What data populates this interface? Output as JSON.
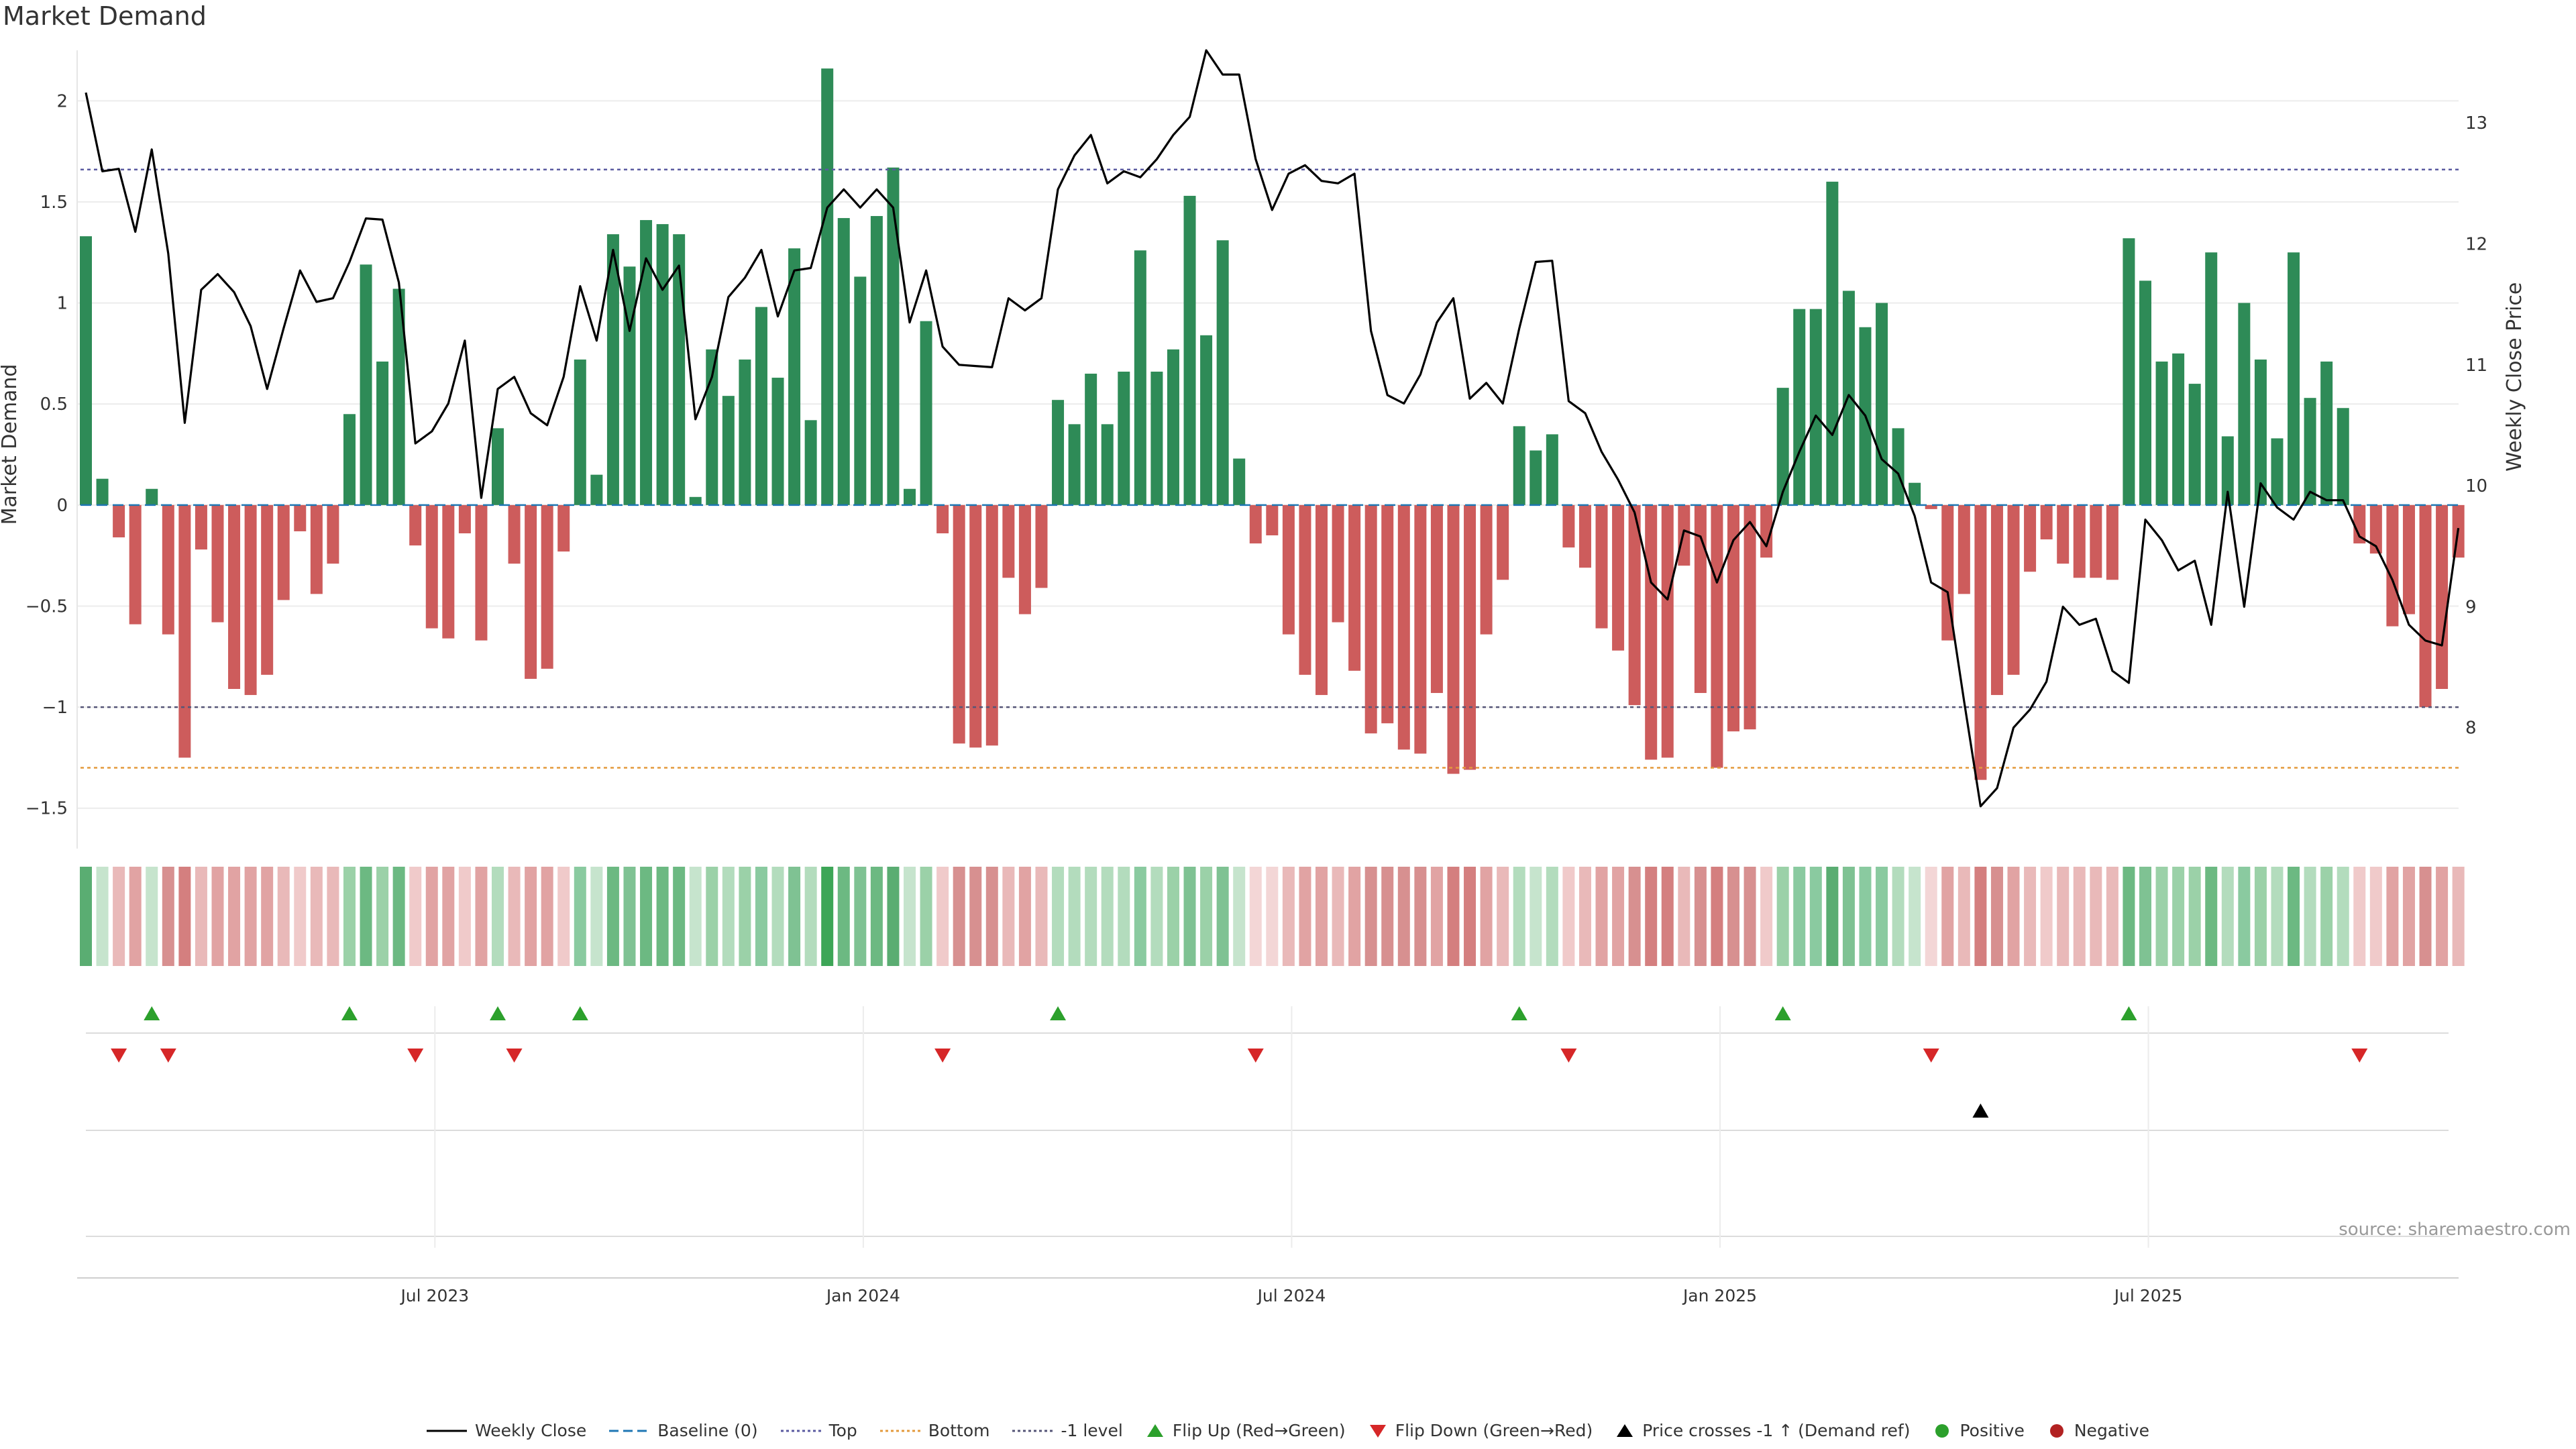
{
  "title": "Market Demand",
  "source": "source: sharemaestro.com",
  "colors": {
    "positive": "#2e8b57",
    "negative": "#cd5c5c",
    "price_line": "#000000",
    "baseline": "#1f77b4",
    "top": "#5a5aa0",
    "bottom": "#e39a3c",
    "minus_one": "#555577",
    "flip_up": "#2ca02c",
    "flip_down": "#d62728",
    "price_cross": "#000000",
    "pos_dot": "#2ca02c",
    "neg_dot": "#b22222"
  },
  "legend": [
    {
      "label": "Weekly Close",
      "type": "line-solid",
      "color": "#000000"
    },
    {
      "label": "Baseline (0)",
      "type": "line-dash",
      "color": "#1f77b4"
    },
    {
      "label": "Top",
      "type": "line-dot",
      "color": "#5a5aa0"
    },
    {
      "label": "Bottom",
      "type": "line-dot",
      "color": "#e39a3c"
    },
    {
      "label": "-1 level",
      "type": "line-dot",
      "color": "#555577"
    },
    {
      "label": "Flip Up (Red→Green)",
      "type": "tri-up",
      "color": "#2ca02c"
    },
    {
      "label": "Flip Down (Green→Red)",
      "type": "tri-down",
      "color": "#d62728"
    },
    {
      "label": "Price crosses -1 ↑ (Demand ref)",
      "type": "tri-up",
      "color": "#000000"
    },
    {
      "label": "Positive",
      "type": "dot",
      "color": "#2ca02c"
    },
    {
      "label": "Negative",
      "type": "dot",
      "color": "#b22222"
    }
  ],
  "chart_data": {
    "type": "bar",
    "title": "Market Demand",
    "ylabel": "Market Demand",
    "y2label": "Weekly Close Price",
    "ylim": [
      -1.7,
      2.25
    ],
    "y2lim": [
      7.0,
      13.6
    ],
    "yticks": [
      -1.5,
      -1,
      -0.5,
      0,
      0.5,
      1,
      1.5,
      2
    ],
    "ytick_labels": [
      "−1.5",
      "−1",
      "−0.5",
      "0",
      "0.5",
      "1",
      "1.5",
      "2"
    ],
    "y2ticks": [
      8,
      9,
      10,
      11,
      12,
      13
    ],
    "y2tick_labels": [
      "8",
      "9",
      "10",
      "11",
      "12",
      "13"
    ],
    "reference_lines": {
      "baseline": 0,
      "top": 1.66,
      "bottom": -1.3,
      "minus_one": -1
    },
    "x_tick_labels": [
      {
        "label": "Jul 2023",
        "week": 22
      },
      {
        "label": "Jan 2024",
        "week": 48
      },
      {
        "label": "Jul 2024",
        "week": 74
      },
      {
        "label": "Jan 2025",
        "week": 100
      },
      {
        "label": "Jul 2025",
        "week": 126
      }
    ],
    "demand": [
      1.33,
      0.13,
      -0.16,
      -0.59,
      0.08,
      -0.64,
      -1.25,
      -0.22,
      -0.58,
      -0.91,
      -0.94,
      -0.84,
      -0.47,
      -0.13,
      -0.44,
      -0.29,
      0.45,
      1.19,
      0.71,
      1.07,
      -0.2,
      -0.61,
      -0.66,
      -0.14,
      -0.67,
      0.38,
      -0.29,
      -0.86,
      -0.81,
      -0.23,
      0.72,
      0.15,
      1.34,
      1.18,
      1.41,
      1.39,
      1.34,
      0.04,
      0.77,
      0.54,
      0.72,
      0.98,
      0.63,
      1.27,
      0.42,
      2.16,
      1.42,
      1.13,
      1.43,
      1.67,
      0.08,
      0.91,
      -0.14,
      -1.18,
      -1.2,
      -1.19,
      -0.36,
      -0.54,
      -0.41,
      0.52,
      0.4,
      0.65,
      0.4,
      0.66,
      1.26,
      0.66,
      0.77,
      1.53,
      0.84,
      1.31,
      0.23,
      -0.19,
      -0.15,
      -0.64,
      -0.84,
      -0.94,
      -0.58,
      -0.82,
      -1.13,
      -1.08,
      -1.21,
      -1.23,
      -0.93,
      -1.33,
      -1.31,
      -0.64,
      -0.37,
      0.39,
      0.27,
      0.35,
      -0.21,
      -0.31,
      -0.61,
      -0.72,
      -0.99,
      -1.26,
      -1.25,
      -0.3,
      -0.93,
      -1.3,
      -1.12,
      -1.11,
      -0.26,
      0.58,
      0.97,
      0.97,
      1.6,
      1.06,
      0.88,
      1.0,
      0.38,
      0.11,
      -0.02,
      -0.67,
      -0.44,
      -1.36,
      -0.94,
      -0.84,
      -0.33,
      -0.17,
      -0.29,
      -0.36,
      -0.36,
      -0.37,
      1.32,
      1.11,
      0.71,
      0.75,
      0.6,
      1.25,
      0.34,
      1.0,
      0.72,
      0.33,
      1.25,
      0.53,
      0.71,
      0.48,
      -0.19,
      -0.24,
      -0.6,
      -0.54,
      -1.0,
      -0.91,
      -0.26
    ],
    "weekly_close": [
      13.25,
      12.6,
      12.62,
      12.1,
      12.78,
      11.92,
      10.52,
      11.62,
      11.75,
      11.6,
      11.32,
      10.8,
      11.3,
      11.78,
      11.52,
      11.55,
      11.85,
      12.21,
      12.2,
      11.68,
      10.35,
      10.45,
      10.68,
      11.2,
      9.9,
      10.8,
      10.9,
      10.6,
      10.5,
      10.9,
      11.65,
      11.2,
      11.95,
      11.28,
      11.88,
      11.62,
      11.82,
      10.55,
      10.9,
      11.56,
      11.72,
      11.95,
      11.4,
      11.78,
      11.8,
      12.3,
      12.45,
      12.3,
      12.45,
      12.3,
      11.35,
      11.78,
      11.15,
      11.0,
      10.99,
      10.98,
      11.55,
      11.45,
      11.55,
      12.45,
      12.73,
      12.9,
      12.5,
      12.6,
      12.55,
      12.7,
      12.9,
      13.05,
      13.6,
      13.4,
      13.4,
      12.7,
      12.28,
      12.58,
      12.65,
      12.52,
      12.5,
      12.58,
      11.28,
      10.75,
      10.68,
      10.92,
      11.35,
      11.55,
      10.72,
      10.85,
      10.68,
      11.3,
      11.85,
      11.86,
      10.7,
      10.6,
      10.28,
      10.05,
      9.78,
      9.2,
      9.06,
      9.63,
      9.58,
      9.2,
      9.55,
      9.7,
      9.5,
      9.95,
      10.28,
      10.58,
      10.42,
      10.75,
      10.58,
      10.22,
      10.1,
      9.75,
      9.2,
      9.12,
      8.22,
      7.35,
      7.5,
      8.0,
      8.15,
      8.38,
      9.0,
      8.85,
      8.9,
      8.47,
      8.37,
      9.72,
      9.55,
      9.3,
      9.38,
      8.85,
      9.95,
      9.0,
      10.02,
      9.82,
      9.72,
      9.95,
      9.88,
      9.88,
      9.58,
      9.5,
      9.22,
      8.85,
      8.72,
      8.68,
      9.65
    ],
    "strip_colors": [
      "#5aad72",
      "#c6e4cd",
      "#e9b9b9",
      "#e1a3a3",
      "#c6e4cd",
      "#d79090",
      "#d47f7f",
      "#e9b9b9",
      "#e1a3a3",
      "#e1a3a3",
      "#e1a3a3",
      "#e1a3a3",
      "#e9b9b9",
      "#f0caca",
      "#e9b9b9",
      "#e9b9b9",
      "#9bd1a8",
      "#6cb982",
      "#9bd1a8",
      "#6cb982",
      "#f0caca",
      "#e1a3a3",
      "#e1a3a3",
      "#f0caca",
      "#e1a3a3",
      "#b3dcbd",
      "#e9b9b9",
      "#e1a3a3",
      "#e1a3a3",
      "#f0caca",
      "#8acaa0",
      "#c6e4cd",
      "#6cb982",
      "#7fc293",
      "#6cb982",
      "#6cb982",
      "#6cb982",
      "#c6e4cd",
      "#9bd1a8",
      "#b3dcbd",
      "#9bd1a8",
      "#8acaa0",
      "#b3dcbd",
      "#7fc293",
      "#b3dcbd",
      "#3da657",
      "#6cb982",
      "#7fc293",
      "#6cb982",
      "#5aad72",
      "#c6e4cd",
      "#9bd1a8",
      "#f0caca",
      "#d79090",
      "#d79090",
      "#d79090",
      "#e9b9b9",
      "#e1a3a3",
      "#e9b9b9",
      "#b3dcbd",
      "#b3dcbd",
      "#b3dcbd",
      "#b3dcbd",
      "#b3dcbd",
      "#8acaa0",
      "#b3dcbd",
      "#9bd1a8",
      "#7fc293",
      "#9bd1a8",
      "#7fc293",
      "#c6e4cd",
      "#f3d6d6",
      "#f3d6d6",
      "#e9b9b9",
      "#e1a3a3",
      "#e1a3a3",
      "#e9b9b9",
      "#e1a3a3",
      "#d79090",
      "#d79090",
      "#d79090",
      "#d79090",
      "#e1a3a3",
      "#d47f7f",
      "#d47f7f",
      "#e1a3a3",
      "#e9b9b9",
      "#b3dcbd",
      "#c6e4cd",
      "#b3dcbd",
      "#f0caca",
      "#e9b9b9",
      "#e1a3a3",
      "#e1a3a3",
      "#d79090",
      "#d47f7f",
      "#d47f7f",
      "#e9b9b9",
      "#d79090",
      "#d47f7f",
      "#d79090",
      "#d79090",
      "#f0caca",
      "#9bd1a8",
      "#8acaa0",
      "#8acaa0",
      "#5aad72",
      "#7fc293",
      "#8acaa0",
      "#8acaa0",
      "#b3dcbd",
      "#c6e4cd",
      "#f3d6d6",
      "#e1a3a3",
      "#e9b9b9",
      "#d47f7f",
      "#d79090",
      "#e1a3a3",
      "#e9b9b9",
      "#f0caca",
      "#e9b9b9",
      "#e9b9b9",
      "#e9b9b9",
      "#e9b9b9",
      "#6cb982",
      "#7fc293",
      "#9bd1a8",
      "#9bd1a8",
      "#9bd1a8",
      "#6cb982",
      "#b3dcbd",
      "#8acaa0",
      "#9bd1a8",
      "#b3dcbd",
      "#6cb982",
      "#b3dcbd",
      "#9bd1a8",
      "#b3dcbd",
      "#f0caca",
      "#f0caca",
      "#e1a3a3",
      "#e1a3a3",
      "#d79090",
      "#e1a3a3",
      "#e9b9b9"
    ],
    "flip_up_weeks": [
      4,
      16,
      25,
      30,
      59,
      87,
      103,
      124
    ],
    "flip_down_weeks": [
      2,
      5,
      20,
      26,
      52,
      71,
      90,
      112,
      138
    ],
    "price_cross_weeks": [
      115
    ]
  }
}
